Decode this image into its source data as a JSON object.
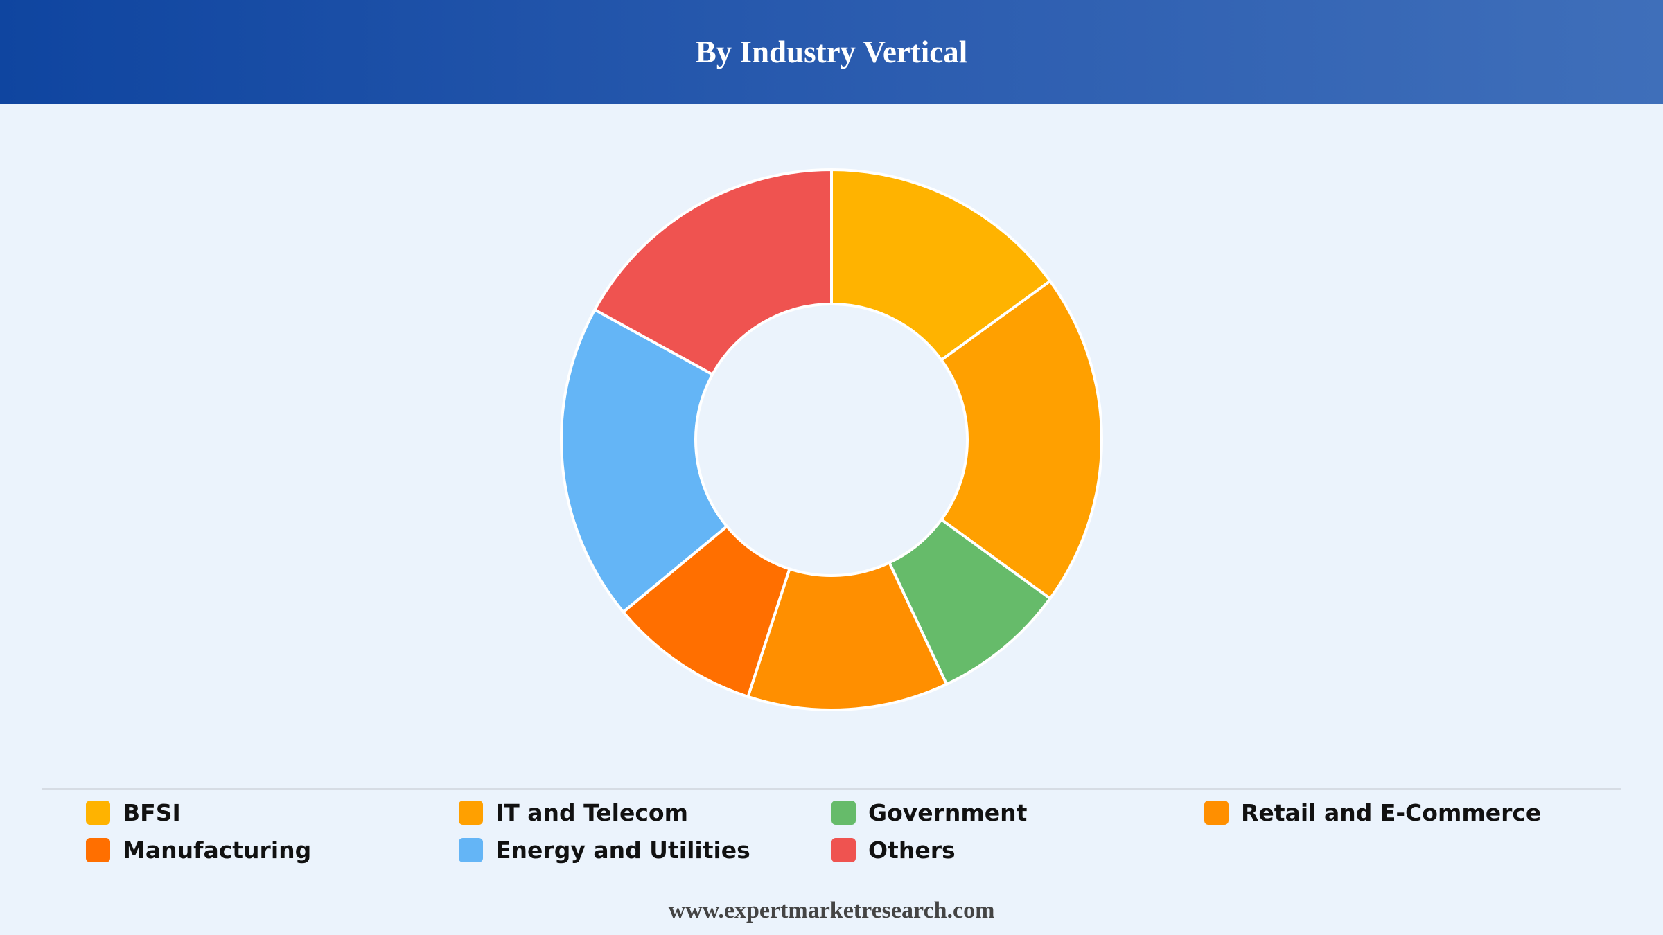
{
  "header": {
    "title": "By Industry Vertical"
  },
  "footer": {
    "source": "www.expertmarketresearch.com"
  },
  "chart_data": {
    "type": "pie",
    "variant": "donut",
    "title": "By Industry Vertical",
    "legend_position": "bottom",
    "categories": [
      "BFSI",
      "IT and Telecom",
      "Government",
      "Retail and E-Commerce",
      "Manufacturing",
      "Energy and Utilities",
      "Others"
    ],
    "values": [
      15,
      20,
      8,
      12,
      9,
      19,
      17
    ],
    "colors": [
      "#ffb300",
      "#ffa000",
      "#66bb6a",
      "#ff8f00",
      "#ff6f00",
      "#64b5f6",
      "#ef5350"
    ],
    "legend_order": [
      "BFSI",
      "IT and Telecom",
      "Government",
      "Retail and E-Commerce",
      "Manufacturing",
      "Energy and Utilities",
      "Others"
    ]
  }
}
